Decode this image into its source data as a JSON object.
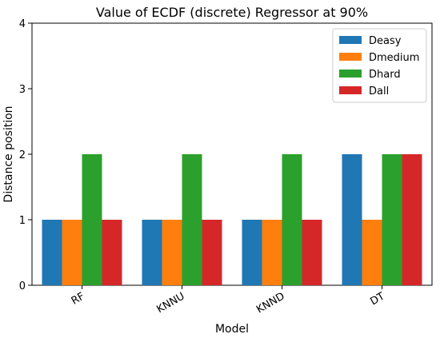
{
  "chart_data": {
    "type": "bar",
    "title": "Value of ECDF (discrete) Regressor  at 90%",
    "xlabel": "Model",
    "ylabel": "Distance position",
    "categories": [
      "RF",
      "KNNU",
      "KNND",
      "DT"
    ],
    "series": [
      {
        "name": "Deasy",
        "color": "#1f77b4",
        "values": [
          1,
          1,
          1,
          2
        ]
      },
      {
        "name": "Dmedium",
        "color": "#ff7f0e",
        "values": [
          1,
          1,
          1,
          1
        ]
      },
      {
        "name": "Dhard",
        "color": "#2ca02c",
        "values": [
          2,
          2,
          2,
          2
        ]
      },
      {
        "name": "Dall",
        "color": "#d62728",
        "values": [
          1,
          1,
          1,
          2
        ]
      }
    ],
    "ylim": [
      0,
      4
    ],
    "yticks": [
      "0",
      "1",
      "2",
      "3",
      "4"
    ],
    "grid": false,
    "legend_position": "top-right"
  }
}
